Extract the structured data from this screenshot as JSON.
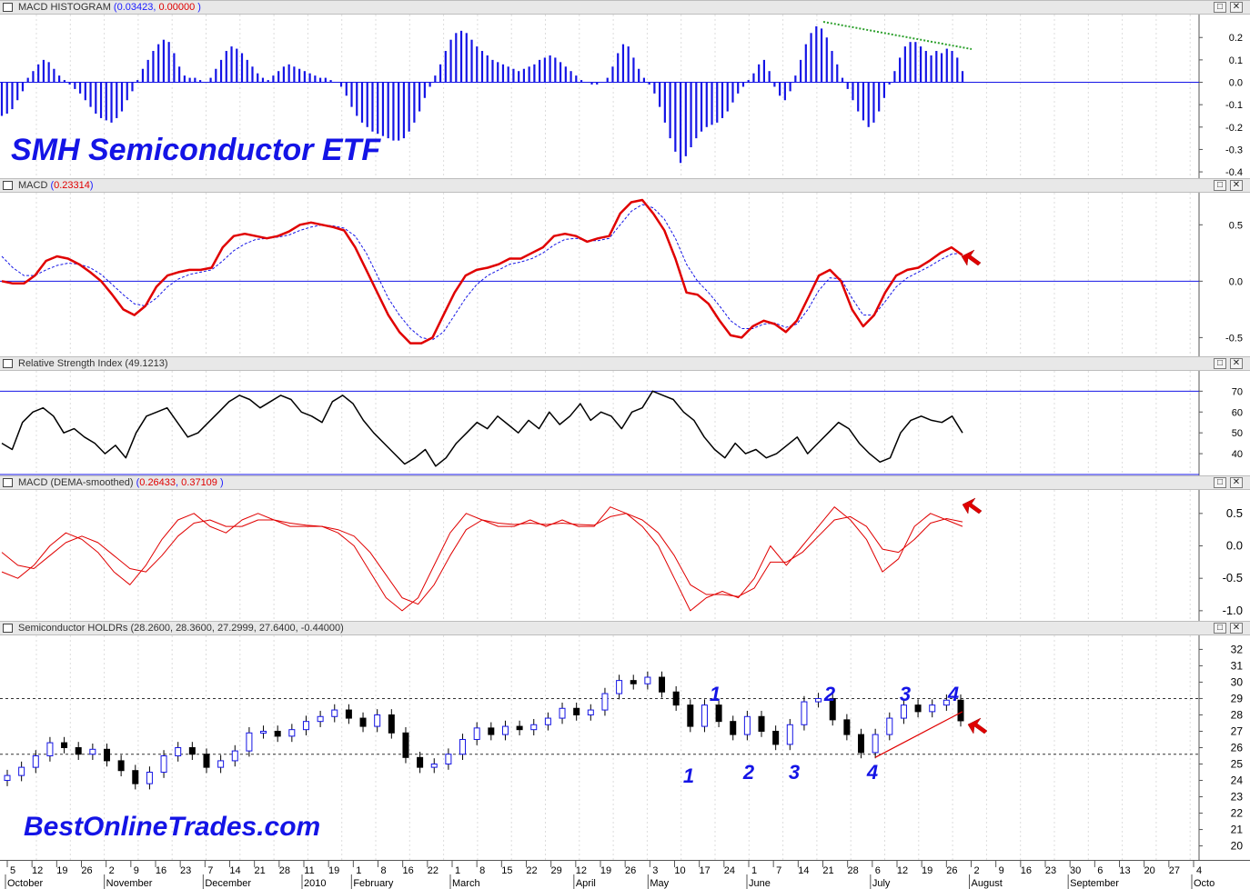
{
  "title_overlay": "SMH Semiconductor ETF",
  "brand_overlay": "BestOnlineTrades.com",
  "colors": {
    "blue": "#1414e6",
    "red": "#e00000",
    "black": "#000000",
    "green": "#2ca02c"
  },
  "panes": [
    {
      "id": "macd_hist",
      "label": "MACD HISTOGRAM",
      "values": [
        "0.03423",
        "0.00000"
      ],
      "value_colors": [
        "blue",
        "red"
      ],
      "yticks": [
        "0.2",
        "0.1",
        "0.0",
        "-0.1",
        "-0.2",
        "-0.3",
        "-0.4"
      ]
    },
    {
      "id": "macd",
      "label": "MACD",
      "values": [
        "0.23314"
      ],
      "value_colors": [
        "red"
      ],
      "yticks": [
        "0.5",
        "0.0",
        "-0.5"
      ]
    },
    {
      "id": "rsi",
      "label": "Relative Strength Index",
      "values": [
        "49.1213"
      ],
      "value_colors": [
        "black"
      ],
      "yticks": [
        "70",
        "60",
        "50",
        "40"
      ]
    },
    {
      "id": "dema",
      "label": "MACD (DEMA-smoothed)",
      "values": [
        "0.26433",
        "0.37109"
      ],
      "value_colors": [
        "red",
        "red"
      ],
      "yticks": [
        "0.5",
        "0.0",
        "-0.5",
        "-1.0"
      ]
    },
    {
      "id": "price",
      "label": "Semiconductor HOLDRs",
      "values": [
        "28.2600",
        "28.3600",
        "27.2999",
        "27.6400",
        "-0.44000"
      ],
      "value_colors": [
        "black",
        "black",
        "black",
        "black",
        "black"
      ],
      "yticks": [
        "32",
        "31",
        "30",
        "29",
        "28",
        "27",
        "26",
        "25",
        "24",
        "23",
        "22",
        "21",
        "20"
      ]
    }
  ],
  "buttons": {
    "restore": "□",
    "close": "✕"
  },
  "x_axis": {
    "days": [
      "5",
      "12",
      "19",
      "26",
      "2",
      "9",
      "16",
      "23",
      "7",
      "14",
      "21",
      "28",
      "11",
      "19",
      "1",
      "8",
      "16",
      "22",
      "1",
      "8",
      "15",
      "22",
      "29",
      "12",
      "19",
      "26",
      "3",
      "10",
      "17",
      "24",
      "1",
      "7",
      "14",
      "21",
      "28",
      "6",
      "12",
      "19",
      "26",
      "2",
      "9",
      "16",
      "23",
      "30",
      "6",
      "13",
      "20",
      "27",
      "4"
    ],
    "months": [
      "October",
      "November",
      "December",
      "2010",
      "February",
      "March",
      "April",
      "May",
      "June",
      "July",
      "August",
      "September",
      "Octo"
    ]
  },
  "wave_labels": {
    "top": [
      "1",
      "2",
      "3",
      "4"
    ],
    "bottom": [
      "1",
      "2",
      "3",
      "4"
    ]
  },
  "chart_data": [
    {
      "type": "bar",
      "title": "MACD HISTOGRAM",
      "ylim": [
        -0.42,
        0.27
      ],
      "series": [
        {
          "name": "MACD HISTOGRAM",
          "values": [
            -0.15,
            -0.14,
            -0.12,
            -0.08,
            -0.04,
            0.02,
            0.05,
            0.08,
            0.1,
            0.09,
            0.06,
            0.03,
            0.01,
            -0.01,
            -0.03,
            -0.05,
            -0.08,
            -0.11,
            -0.14,
            -0.16,
            -0.17,
            -0.18,
            -0.16,
            -0.13,
            -0.08,
            -0.04,
            0.01,
            0.06,
            0.1,
            0.14,
            0.17,
            0.19,
            0.18,
            0.13,
            0.07,
            0.03,
            0.02,
            0.02,
            0.01,
            0.0,
            0.02,
            0.06,
            0.1,
            0.14,
            0.16,
            0.15,
            0.13,
            0.1,
            0.07,
            0.04,
            0.02,
            0.01,
            0.03,
            0.05,
            0.07,
            0.08,
            0.07,
            0.06,
            0.05,
            0.04,
            0.03,
            0.02,
            0.02,
            0.01,
            0.0,
            -0.02,
            -0.06,
            -0.11,
            -0.15,
            -0.18,
            -0.2,
            -0.22,
            -0.23,
            -0.24,
            -0.25,
            -0.26,
            -0.26,
            -0.25,
            -0.22,
            -0.18,
            -0.13,
            -0.07,
            -0.02,
            0.03,
            0.08,
            0.14,
            0.19,
            0.22,
            0.23,
            0.22,
            0.19,
            0.16,
            0.14,
            0.12,
            0.1,
            0.09,
            0.08,
            0.07,
            0.06,
            0.05,
            0.06,
            0.07,
            0.08,
            0.1,
            0.11,
            0.12,
            0.11,
            0.09,
            0.07,
            0.05,
            0.03,
            0.01,
            0.0,
            -0.01,
            -0.01,
            0.0,
            0.02,
            0.07,
            0.13,
            0.17,
            0.16,
            0.11,
            0.06,
            0.02,
            -0.01,
            -0.05,
            -0.11,
            -0.18,
            -0.25,
            -0.31,
            -0.36,
            -0.33,
            -0.29,
            -0.25,
            -0.22,
            -0.2,
            -0.19,
            -0.18,
            -0.16,
            -0.13,
            -0.09,
            -0.05,
            -0.02,
            0.01,
            0.04,
            0.08,
            0.1,
            0.05,
            -0.02,
            -0.06,
            -0.08,
            -0.04,
            0.03,
            0.1,
            0.17,
            0.22,
            0.25,
            0.24,
            0.2,
            0.14,
            0.08,
            0.02,
            -0.03,
            -0.08,
            -0.13,
            -0.17,
            -0.2,
            -0.18,
            -0.13,
            -0.07,
            -0.01,
            0.05,
            0.11,
            0.16,
            0.18,
            0.18,
            0.16,
            0.14,
            0.12,
            0.14,
            0.13,
            0.15,
            0.14,
            0.11,
            0.05
          ]
        }
      ],
      "annotations": [
        "downward dotted trendline on histogram peaks"
      ]
    },
    {
      "type": "line",
      "title": "MACD",
      "ylim": [
        -0.65,
        0.72
      ],
      "series": [
        {
          "name": "MACD",
          "values": [
            0.0,
            -0.02,
            -0.02,
            0.05,
            0.18,
            0.22,
            0.2,
            0.15,
            0.08,
            0.0,
            -0.12,
            -0.25,
            -0.3,
            -0.22,
            -0.05,
            0.05,
            0.08,
            0.1,
            0.1,
            0.12,
            0.3,
            0.4,
            0.42,
            0.4,
            0.38,
            0.4,
            0.44,
            0.5,
            0.52,
            0.5,
            0.48,
            0.45,
            0.3,
            0.1,
            -0.1,
            -0.3,
            -0.45,
            -0.55,
            -0.55,
            -0.5,
            -0.3,
            -0.1,
            0.05,
            0.1,
            0.12,
            0.15,
            0.2,
            0.2,
            0.25,
            0.3,
            0.4,
            0.42,
            0.4,
            0.35,
            0.38,
            0.4,
            0.6,
            0.7,
            0.72,
            0.6,
            0.45,
            0.2,
            -0.1,
            -0.12,
            -0.2,
            -0.35,
            -0.48,
            -0.5,
            -0.4,
            -0.35,
            -0.38,
            -0.45,
            -0.35,
            -0.15,
            0.05,
            0.1,
            0.0,
            -0.25,
            -0.4,
            -0.3,
            -0.1,
            0.05,
            0.1,
            0.12,
            0.18,
            0.25,
            0.3,
            0.23
          ]
        },
        {
          "name": "Signal",
          "values": [
            0.22,
            0.12,
            0.05,
            0.05,
            0.1,
            0.14,
            0.16,
            0.15,
            0.12,
            0.06,
            -0.03,
            -0.12,
            -0.2,
            -0.22,
            -0.15,
            -0.05,
            0.02,
            0.06,
            0.08,
            0.1,
            0.18,
            0.27,
            0.33,
            0.37,
            0.38,
            0.39,
            0.41,
            0.45,
            0.48,
            0.5,
            0.49,
            0.47,
            0.4,
            0.25,
            0.05,
            -0.15,
            -0.3,
            -0.42,
            -0.5,
            -0.52,
            -0.45,
            -0.3,
            -0.15,
            -0.03,
            0.05,
            0.1,
            0.15,
            0.17,
            0.2,
            0.25,
            0.32,
            0.37,
            0.38,
            0.36,
            0.36,
            0.38,
            0.5,
            0.62,
            0.68,
            0.65,
            0.55,
            0.38,
            0.15,
            0.0,
            -0.1,
            -0.22,
            -0.35,
            -0.42,
            -0.42,
            -0.38,
            -0.37,
            -0.41,
            -0.38,
            -0.25,
            -0.08,
            0.03,
            0.02,
            -0.15,
            -0.3,
            -0.3,
            -0.18,
            -0.05,
            0.03,
            0.08,
            0.13,
            0.19,
            0.24,
            0.25
          ]
        }
      ]
    },
    {
      "type": "line",
      "title": "Relative Strength Index",
      "ylim": [
        30,
        78
      ],
      "series": [
        {
          "name": "RSI",
          "values": [
            45,
            42,
            55,
            60,
            62,
            58,
            50,
            52,
            48,
            45,
            40,
            44,
            38,
            50,
            58,
            60,
            62,
            55,
            48,
            50,
            55,
            60,
            65,
            68,
            66,
            62,
            65,
            68,
            66,
            60,
            58,
            55,
            65,
            68,
            64,
            56,
            50,
            45,
            40,
            35,
            38,
            42,
            34,
            38,
            45,
            50,
            55,
            52,
            58,
            54,
            50,
            56,
            52,
            60,
            54,
            58,
            64,
            56,
            60,
            58,
            52,
            60,
            62,
            70,
            68,
            66,
            60,
            56,
            48,
            42,
            38,
            45,
            40,
            42,
            38,
            40,
            44,
            48,
            40,
            45,
            50,
            55,
            52,
            45,
            40,
            36,
            38,
            50,
            56,
            58,
            56,
            55,
            58,
            50
          ]
        }
      ]
    },
    {
      "type": "line",
      "title": "MACD (DEMA-smoothed)",
      "ylim": [
        -1.1,
        0.75
      ],
      "series": [
        {
          "name": "0.26433",
          "values": [
            -0.4,
            -0.5,
            -0.3,
            0.0,
            0.2,
            0.1,
            -0.1,
            -0.4,
            -0.6,
            -0.3,
            0.1,
            0.4,
            0.5,
            0.3,
            0.2,
            0.4,
            0.5,
            0.4,
            0.3,
            0.3,
            0.3,
            0.2,
            0.0,
            -0.4,
            -0.8,
            -1.0,
            -0.8,
            -0.3,
            0.2,
            0.5,
            0.4,
            0.3,
            0.3,
            0.4,
            0.3,
            0.4,
            0.3,
            0.3,
            0.6,
            0.5,
            0.3,
            0.0,
            -0.5,
            -1.0,
            -0.8,
            -0.7,
            -0.8,
            -0.5,
            0.0,
            -0.3,
            0.0,
            0.3,
            0.6,
            0.4,
            0.1,
            -0.4,
            -0.2,
            0.3,
            0.5,
            0.4,
            0.3
          ]
        },
        {
          "name": "0.37109",
          "values": [
            -0.1,
            -0.3,
            -0.35,
            -0.15,
            0.05,
            0.15,
            0.05,
            -0.15,
            -0.35,
            -0.4,
            -0.15,
            0.15,
            0.35,
            0.4,
            0.3,
            0.3,
            0.4,
            0.4,
            0.35,
            0.32,
            0.3,
            0.25,
            0.15,
            -0.1,
            -0.45,
            -0.8,
            -0.9,
            -0.6,
            -0.15,
            0.25,
            0.4,
            0.35,
            0.33,
            0.35,
            0.33,
            0.35,
            0.33,
            0.32,
            0.45,
            0.5,
            0.4,
            0.2,
            -0.15,
            -0.6,
            -0.75,
            -0.75,
            -0.78,
            -0.65,
            -0.25,
            -0.25,
            -0.1,
            0.15,
            0.4,
            0.45,
            0.3,
            -0.05,
            -0.1,
            0.1,
            0.35,
            0.42,
            0.37
          ]
        }
      ]
    },
    {
      "type": "candlestick",
      "title": "Semiconductor HOLDRs",
      "ylim": [
        19.2,
        32.3
      ],
      "close": [
        24.3,
        24.8,
        25.5,
        26.3,
        26.0,
        25.6,
        25.9,
        25.2,
        24.6,
        23.8,
        24.5,
        25.5,
        26.0,
        25.6,
        24.8,
        25.2,
        25.8,
        26.9,
        27.0,
        26.7,
        27.1,
        27.6,
        27.9,
        28.3,
        27.8,
        27.3,
        28.0,
        26.9,
        25.4,
        24.8,
        25.0,
        25.6,
        26.5,
        27.2,
        26.8,
        27.3,
        27.1,
        27.4,
        27.8,
        28.4,
        28.0,
        28.3,
        29.3,
        30.1,
        29.9,
        30.3,
        29.4,
        28.6,
        27.3,
        28.6,
        27.6,
        26.8,
        27.9,
        27.0,
        26.2,
        27.4,
        28.8,
        29.0,
        27.7,
        26.8,
        25.7,
        26.8,
        27.8,
        28.6,
        28.2,
        28.6,
        28.9,
        27.64
      ],
      "reference_lines": [
        29.0,
        25.6
      ],
      "annotations": [
        "wave counts 1-4 above and below",
        "rising red trendline from late June lows"
      ]
    }
  ]
}
